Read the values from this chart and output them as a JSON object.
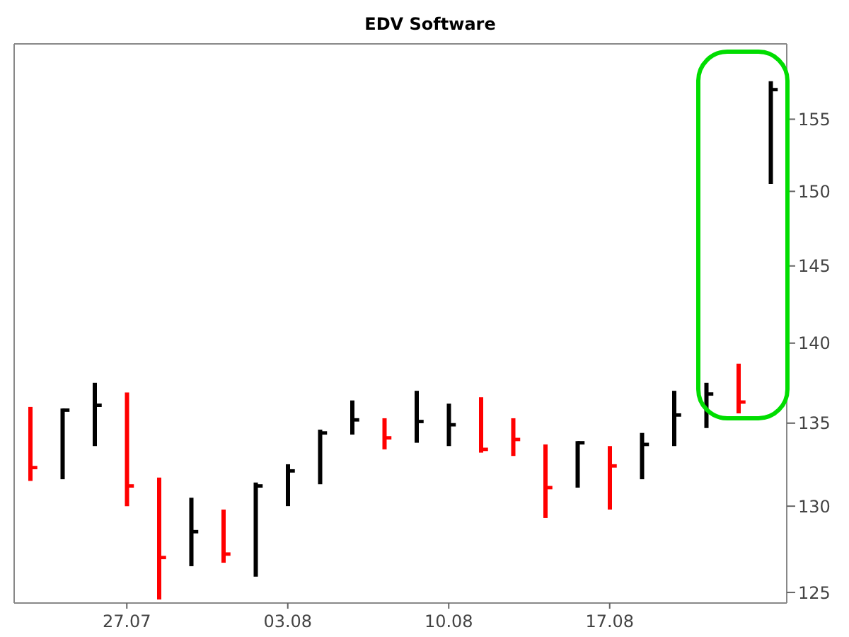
{
  "chart_data": {
    "type": "bar",
    "title": "EDV Software",
    "categories": [
      null,
      null,
      null,
      "27.07",
      null,
      null,
      null,
      null,
      "03.08",
      null,
      null,
      null,
      null,
      "10.08",
      null,
      null,
      null,
      null,
      "17.08",
      null,
      null,
      null,
      null,
      null
    ],
    "series": [
      {
        "type": "bar",
        "base": [
          131.5,
          131.6,
          133.6,
          130.0,
          124.6,
          126.5,
          126.7,
          125.9,
          130.0,
          131.3,
          134.3,
          133.4,
          133.8,
          133.6,
          133.2,
          133.0,
          129.3,
          131.1,
          129.8,
          131.6,
          133.6,
          134.7,
          135.6,
          150.5
        ],
        "values": [
          4.5,
          4.3,
          3.9,
          6.9,
          7.1,
          4.0,
          3.1,
          5.5,
          2.5,
          3.3,
          2.1,
          1.9,
          3.2,
          2.6,
          3.4,
          2.3,
          4.4,
          2.8,
          3.8,
          2.8,
          3.4,
          2.8,
          3.1,
          7.2
        ],
        "colors": [
          "#ff0000",
          "#000000",
          "#000000",
          "#ff0000",
          "#ff0000",
          "#000000",
          "#ff0000",
          "#000000",
          "#000000",
          "#000000",
          "#000000",
          "#ff0000",
          "#000000",
          "#000000",
          "#ff0000",
          "#ff0000",
          "#ff0000",
          "#000000",
          "#ff0000",
          "#000000",
          "#000000",
          "#000000",
          "#ff0000",
          "#000000"
        ]
      },
      {
        "type": "scatter",
        "values": [
          132.3,
          135.8,
          136.1,
          131.2,
          127.0,
          128.5,
          127.2,
          131.2,
          132.1,
          134.4,
          135.2,
          134.1,
          135.1,
          134.9,
          133.4,
          134.0,
          131.1,
          133.8,
          132.4,
          133.7,
          135.5,
          136.8,
          136.3,
          157.1
        ],
        "colors": [
          "#ff0000",
          "#000000",
          "#000000",
          "#ff0000",
          "#ff0000",
          "#000000",
          "#ff0000",
          "#000000",
          "#000000",
          "#000000",
          "#000000",
          "#ff0000",
          "#000000",
          "#000000",
          "#ff0000",
          "#ff0000",
          "#ff0000",
          "#000000",
          "#ff0000",
          "#000000",
          "#000000",
          "#000000",
          "#ff0000",
          "#000000"
        ]
      }
    ],
    "log": "y",
    "ylim": [
      124.4,
      160.4
    ],
    "yticks": [
      125,
      130,
      135,
      140,
      145,
      150,
      155
    ]
  }
}
